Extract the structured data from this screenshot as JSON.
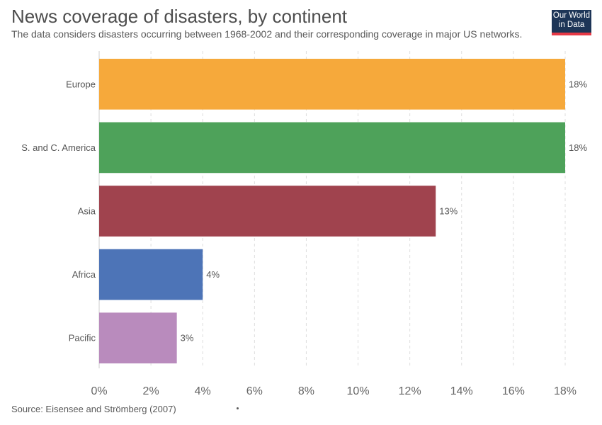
{
  "header": {
    "title": "News coverage of disasters, by continent",
    "subtitle": "The data considers disasters occurring between 1968-2002 and their corresponding coverage in major US networks."
  },
  "logo": {
    "line1": "Our World",
    "line2": "in Data",
    "bg": "#1d3557",
    "accent": "#e63946"
  },
  "footer": {
    "source": "Source: Eisensee and Strömberg (2007)"
  },
  "chart_data": {
    "type": "bar",
    "orientation": "horizontal",
    "title": "News coverage of disasters, by continent",
    "subtitle": "The data considers disasters occurring between 1968-2002 and their corresponding coverage in major US networks.",
    "categories": [
      "Europe",
      "S. and C. America",
      "Asia",
      "Africa",
      "Pacific"
    ],
    "values": [
      18,
      18,
      13,
      4,
      3
    ],
    "value_labels": [
      "18%",
      "18%",
      "13%",
      "4%",
      "3%"
    ],
    "colors": [
      "#f6a93b",
      "#4ea25a",
      "#a0434e",
      "#4d74b7",
      "#b98bbd"
    ],
    "xlim": [
      0,
      18
    ],
    "xticks": [
      0,
      2,
      4,
      6,
      8,
      10,
      12,
      14,
      16,
      18
    ],
    "xtick_labels": [
      "0%",
      "2%",
      "4%",
      "6%",
      "8%",
      "10%",
      "12%",
      "14%",
      "16%",
      "18%"
    ],
    "grid": "vertical dashed",
    "xlabel": "",
    "ylabel": ""
  }
}
